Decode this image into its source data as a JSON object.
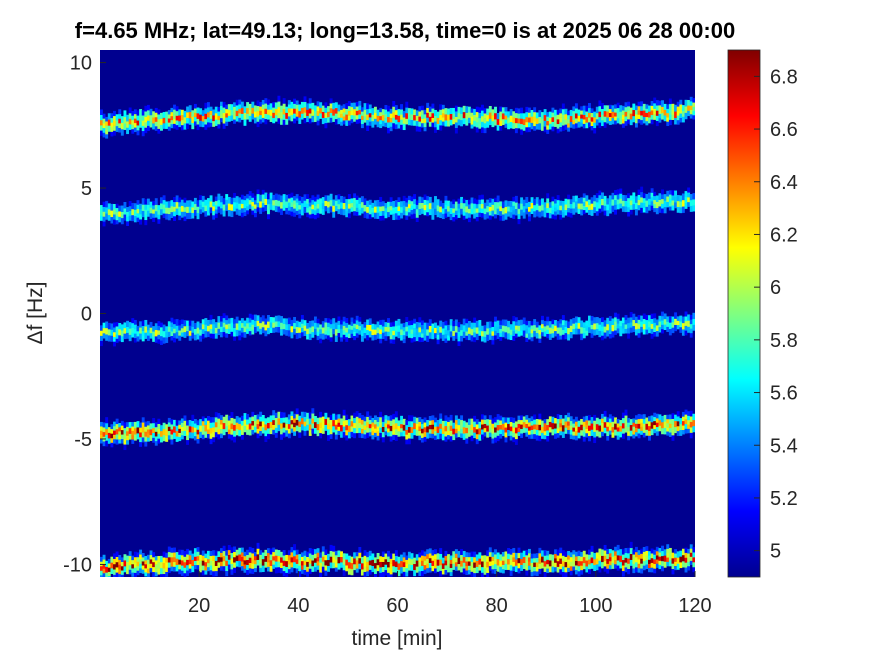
{
  "chart_data": {
    "type": "heatmap",
    "title": "f=4.65 MHz;  lat=49.13; long=13.58, time=0 is at 2025 06 28 00:00",
    "xlabel": "time [min]",
    "ylabel": "Δf [Hz]",
    "xlim": [
      0,
      120
    ],
    "ylim": [
      -10.5,
      10.5
    ],
    "xticks": [
      20,
      40,
      60,
      80,
      100,
      120
    ],
    "yticks": [
      -10,
      -5,
      0,
      5,
      10
    ],
    "colorbar": {
      "colormap": "jet",
      "clim": [
        4.9,
        6.9
      ],
      "ticks": [
        5,
        5.2,
        5.4,
        5.6,
        5.8,
        6,
        6.2,
        6.4,
        6.6,
        6.8
      ]
    },
    "background_color": "#00008f",
    "grid": false,
    "series": [
      {
        "time": [
          0,
          15,
          30,
          45,
          60,
          75,
          90,
          105,
          120
        ],
        "delta_f": [
          7.5,
          7.8,
          8.0,
          8.0,
          7.8,
          7.8,
          7.7,
          7.9,
          8.1
        ],
        "peak": 6.5
      },
      {
        "time": [
          0,
          15,
          30,
          45,
          60,
          75,
          90,
          105,
          120
        ],
        "delta_f": [
          4.0,
          4.2,
          4.4,
          4.3,
          4.2,
          4.2,
          4.2,
          4.4,
          4.5
        ],
        "peak": 6.0
      },
      {
        "time": [
          0,
          15,
          30,
          45,
          60,
          75,
          90,
          105,
          120
        ],
        "delta_f": [
          -0.8,
          -0.7,
          -0.5,
          -0.6,
          -0.7,
          -0.7,
          -0.6,
          -0.5,
          -0.4
        ],
        "peak": 6.0
      },
      {
        "time": [
          0,
          15,
          30,
          45,
          60,
          75,
          90,
          105,
          120
        ],
        "delta_f": [
          -4.8,
          -4.7,
          -4.4,
          -4.4,
          -4.6,
          -4.6,
          -4.5,
          -4.5,
          -4.4
        ],
        "peak": 6.7
      },
      {
        "time": [
          0,
          15,
          30,
          45,
          60,
          75,
          90,
          105,
          120
        ],
        "delta_f": [
          -10.1,
          -9.9,
          -9.8,
          -9.9,
          -10.0,
          -9.9,
          -9.9,
          -9.8,
          -9.7
        ],
        "peak": 6.8
      }
    ]
  }
}
